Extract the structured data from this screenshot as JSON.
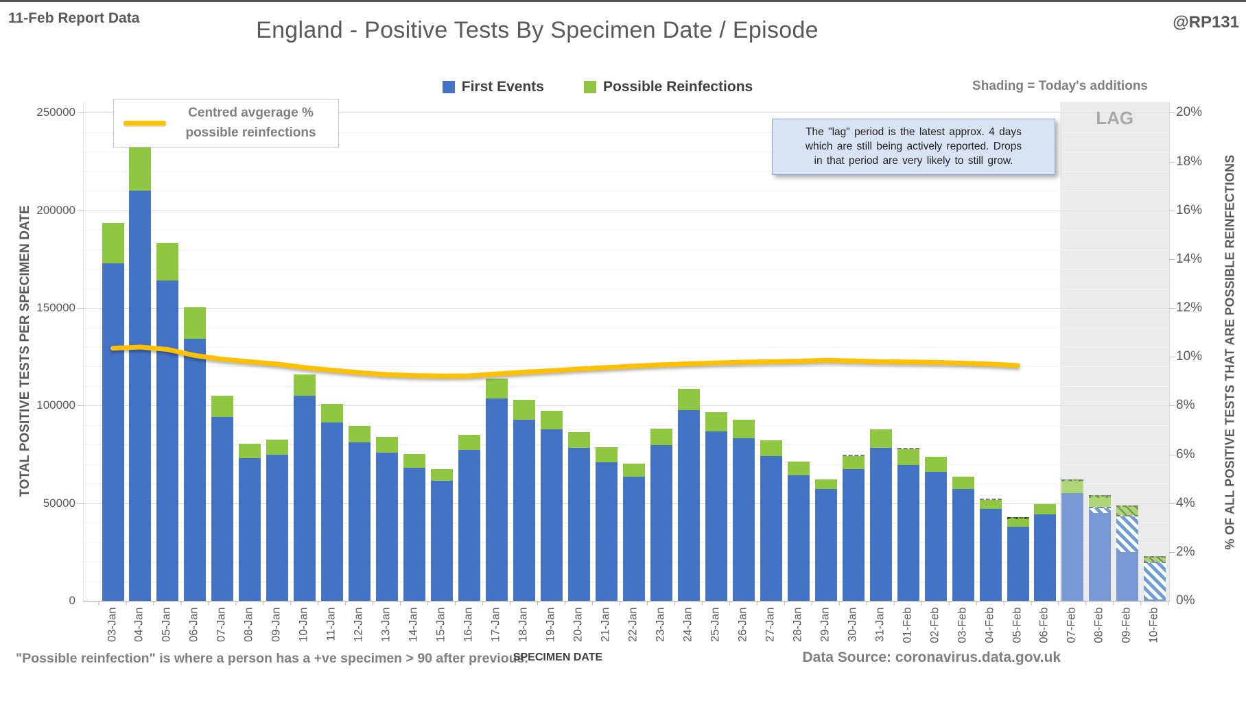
{
  "header": {
    "report_label": "11-Feb Report Data",
    "title": "England - Positive Tests By Specimen Date / Episode",
    "handle": "@RP131"
  },
  "legend": {
    "first_events": "First Events",
    "possible_reinfections": "Possible Reinfections",
    "line_legend_line1": "Centred avgerage %",
    "line_legend_line2": "possible reinfections",
    "shading_note": "Shading = Today's additions"
  },
  "annotation": {
    "lines": [
      "The \"lag\" period is the latest approx. 4 days",
      "which are still being actively reported.  Drops",
      "in that period are very likely to still grow."
    ]
  },
  "footer": {
    "note": "\"Possible reinfection\" is where a person has a +ve specimen > 90 after previous.",
    "data_source": "Data Source: coronavirus.data.gov.uk"
  },
  "colors": {
    "first_events": "#4472C4",
    "possible_reinfections": "#8FC742",
    "line": "#FFC000",
    "lag_shading": "#e3e3e3",
    "annotation_fill": "#dae3f3"
  },
  "chart_data": {
    "type": "bar",
    "subtype": "stacked-bars-with-line",
    "title": "England - Positive Tests By Specimen Date / Episode",
    "xlabel": "SPECIMEN DATE",
    "categories": [
      "03-Jan",
      "04-Jan",
      "05-Jan",
      "06-Jan",
      "07-Jan",
      "08-Jan",
      "09-Jan",
      "10-Jan",
      "11-Jan",
      "12-Jan",
      "13-Jan",
      "14-Jan",
      "15-Jan",
      "16-Jan",
      "17-Jan",
      "18-Jan",
      "19-Jan",
      "20-Jan",
      "21-Jan",
      "22-Jan",
      "23-Jan",
      "24-Jan",
      "25-Jan",
      "26-Jan",
      "27-Jan",
      "28-Jan",
      "29-Jan",
      "30-Jan",
      "31-Jan",
      "01-Feb",
      "02-Feb",
      "03-Feb",
      "04-Feb",
      "05-Feb",
      "06-Feb",
      "07-Feb",
      "08-Feb",
      "09-Feb",
      "10-Feb"
    ],
    "series": [
      {
        "name": "First Events",
        "color": "#4472C4",
        "values": [
          173000,
          210000,
          164000,
          134200,
          94100,
          73200,
          75000,
          105000,
          91400,
          81200,
          75900,
          68000,
          61500,
          77300,
          103500,
          92900,
          87700,
          78300,
          70900,
          63500,
          79700,
          97500,
          86700,
          83400,
          74200,
          64200,
          57200,
          67400,
          78500,
          69700,
          66200,
          57200,
          47100,
          38100,
          44300,
          55100,
          48000,
          44000,
          20100
        ],
        "new_today_values": [
          0,
          0,
          0,
          0,
          0,
          0,
          0,
          0,
          0,
          0,
          0,
          0,
          0,
          0,
          0,
          0,
          0,
          0,
          0,
          0,
          0,
          0,
          0,
          0,
          0,
          0,
          0,
          0,
          0,
          0,
          0,
          0,
          0,
          0,
          0,
          0,
          3200,
          19200,
          19400
        ]
      },
      {
        "name": "Possible Reinfections",
        "color": "#8FC742",
        "values": [
          20500,
          22600,
          19500,
          16300,
          10800,
          7400,
          7600,
          10800,
          9400,
          8500,
          7900,
          7200,
          5900,
          7700,
          10200,
          9900,
          9600,
          8200,
          7900,
          6600,
          8400,
          11100,
          10000,
          9400,
          8100,
          7300,
          5100,
          7600,
          9400,
          8600,
          7600,
          6300,
          5400,
          4700,
          5100,
          7200,
          6100,
          4900,
          2800
        ],
        "new_today_values": [
          0,
          0,
          0,
          0,
          0,
          0,
          0,
          0,
          0,
          0,
          0,
          0,
          0,
          0,
          0,
          0,
          0,
          0,
          0,
          0,
          0,
          0,
          0,
          0,
          0,
          0,
          0,
          800,
          0,
          800,
          0,
          0,
          800,
          900,
          0,
          1200,
          1500,
          4900,
          2800
        ]
      }
    ],
    "line": {
      "name": "Centred avgerage % possible reinfections",
      "color": "#FFC000",
      "axis": "right",
      "values_pct": [
        10.35,
        10.4,
        10.3,
        10.05,
        9.9,
        9.8,
        9.7,
        9.56,
        9.45,
        9.35,
        9.27,
        9.23,
        9.21,
        9.22,
        9.3,
        9.37,
        9.43,
        9.5,
        9.56,
        9.62,
        9.67,
        9.71,
        9.75,
        9.78,
        9.8,
        9.82,
        9.86,
        9.83,
        9.8,
        9.79,
        9.77,
        9.74,
        9.7,
        9.64,
        null,
        null,
        null,
        null,
        null
      ]
    },
    "y_left": {
      "label": "TOTAL POSITIVE TESTS PER SPECIMEN DATE",
      "ticks": [
        "0",
        "50000",
        "100000",
        "150000",
        "200000",
        "250000"
      ],
      "max": 250000,
      "minor_grid_step": 10000
    },
    "y_right": {
      "label": "% OF ALL POSITIVE TESTS THAT ARE POSSIBLE REINFECTIONS",
      "ticks": [
        "0%",
        "2%",
        "4%",
        "6%",
        "8%",
        "10%",
        "12%",
        "14%",
        "16%",
        "18%",
        "20%"
      ],
      "max_pct": 20
    },
    "lag": {
      "label": "LAG",
      "start_category": "07-Feb",
      "note": "Shading = Today's additions"
    },
    "legend_position": "top-center",
    "grid": true
  }
}
